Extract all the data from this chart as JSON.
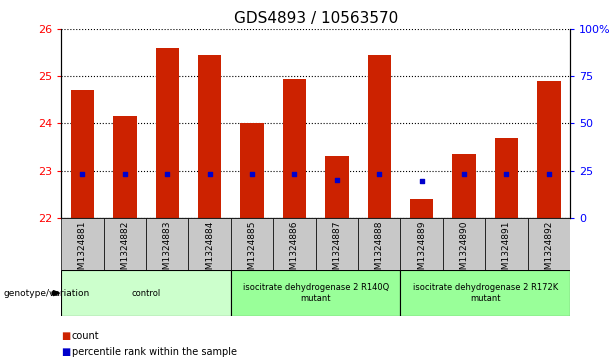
{
  "title": "GDS4893 / 10563570",
  "samples": [
    "GSM1324881",
    "GSM1324882",
    "GSM1324883",
    "GSM1324884",
    "GSM1324885",
    "GSM1324886",
    "GSM1324887",
    "GSM1324888",
    "GSM1324889",
    "GSM1324890",
    "GSM1324891",
    "GSM1324892"
  ],
  "bar_values": [
    24.7,
    24.15,
    25.6,
    25.45,
    24.0,
    24.95,
    23.3,
    25.45,
    22.4,
    23.35,
    23.7,
    24.9
  ],
  "bar_bottom": 22.0,
  "percentile_values": [
    22.93,
    22.93,
    22.93,
    22.93,
    22.93,
    22.93,
    22.8,
    22.93,
    22.78,
    22.93,
    22.93,
    22.93
  ],
  "ylim_left": [
    22,
    26
  ],
  "ylim_right": [
    0,
    100
  ],
  "yticks_left": [
    22,
    23,
    24,
    25,
    26
  ],
  "yticks_right": [
    0,
    25,
    50,
    75,
    100
  ],
  "ytick_labels_right": [
    "0",
    "25",
    "50",
    "75",
    "100%"
  ],
  "bar_color": "#cc2200",
  "dot_color": "#0000cc",
  "plot_bg": "#ffffff",
  "groups": [
    {
      "label": "control",
      "start": 0,
      "end": 3,
      "color": "#ccffcc"
    },
    {
      "label": "isocitrate dehydrogenase 2 R140Q\nmutant",
      "start": 4,
      "end": 7,
      "color": "#99ff99"
    },
    {
      "label": "isocitrate dehydrogenase 2 R172K\nmutant",
      "start": 8,
      "end": 11,
      "color": "#99ff99"
    }
  ],
  "genotype_label": "genotype/variation",
  "legend_items": [
    {
      "color": "#cc2200",
      "label": "count"
    },
    {
      "color": "#0000cc",
      "label": "percentile rank within the sample"
    }
  ],
  "title_fontsize": 11,
  "tick_fontsize": 6.5,
  "bar_width": 0.55,
  "sample_cell_color": "#c8c8c8"
}
